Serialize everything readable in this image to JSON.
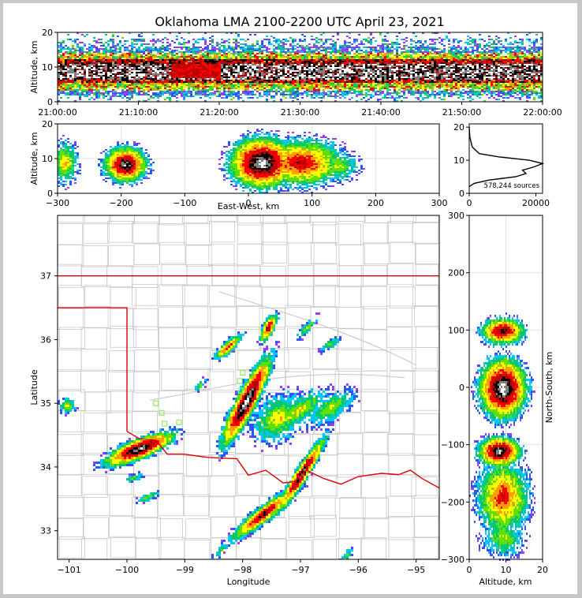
{
  "chart_data": [
    {
      "type": "heatmap",
      "panel": "altitude-time",
      "title": "Oklahoma LMA 2100-2200 UTC April 23, 2021",
      "xlabel": "",
      "ylabel": "Altitude, km",
      "x_ticks": [
        "21:00:00",
        "21:10:00",
        "21:20:00",
        "21:30:00",
        "21:40:00",
        "21:50:00",
        "22:00:00"
      ],
      "y_ticks": [
        "0",
        "10",
        "20"
      ],
      "xlim": [
        "21:00:00",
        "22:00:00"
      ],
      "ylim": [
        0,
        20
      ],
      "core_altitude_km": 9,
      "band": [
        {
          "t": 0,
          "lo": 2.5,
          "hi": 18
        },
        {
          "t": 15,
          "lo": 2.5,
          "hi": 19
        },
        {
          "t": 30,
          "lo": 2,
          "hi": 19
        },
        {
          "t": 45,
          "lo": 2,
          "hi": 19
        },
        {
          "t": 60,
          "lo": 2,
          "hi": 19
        }
      ]
    },
    {
      "type": "heatmap",
      "panel": "altitude-eastwest",
      "xlabel": "East-West, km",
      "ylabel": "Altitude, km",
      "x_ticks": [
        "−300",
        "−200",
        "−100",
        "0",
        "100",
        "200",
        "300"
      ],
      "y_ticks": [
        "0",
        "10",
        "20"
      ],
      "xlim": [
        -300,
        300
      ],
      "ylim": [
        0,
        20
      ],
      "grid": true,
      "blobs": [
        {
          "x": -290,
          "z": 9,
          "rx": 18,
          "rz": 5.5,
          "peak": 0.55
        },
        {
          "x": -195,
          "z": 8.5,
          "rx": 30,
          "rz": 4.5,
          "peak": 0.92
        },
        {
          "x": 20,
          "z": 9,
          "rx": 45,
          "rz": 6.5,
          "peak": 1.0
        },
        {
          "x": 80,
          "z": 9,
          "rx": 60,
          "rz": 6,
          "peak": 0.75
        },
        {
          "x": 140,
          "z": 8,
          "rx": 30,
          "rz": 4,
          "peak": 0.45
        }
      ]
    },
    {
      "type": "line",
      "panel": "altitude-histogram",
      "annotation": "578,244 sources",
      "x_ticks": [
        "0",
        "20000"
      ],
      "y_ticks": [
        "0",
        "10",
        "20"
      ],
      "xlim": [
        0,
        22000
      ],
      "ylim": [
        0,
        21
      ],
      "series": [
        {
          "x": [
            0,
            1500,
            6000,
            14000,
            17000,
            16000,
            19500,
            22000,
            18000,
            9000,
            3000,
            900,
            200,
            0
          ],
          "y": [
            2,
            3,
            4,
            5,
            6,
            7,
            8,
            9,
            10,
            11,
            12,
            14,
            17,
            20
          ]
        }
      ]
    },
    {
      "type": "heatmap",
      "panel": "plan-view",
      "xlabel": "Longitude",
      "ylabel": "Latitude",
      "x_ticks": [
        "−101",
        "−100",
        "−99",
        "−98",
        "−97",
        "−96",
        "−95"
      ],
      "y_ticks": [
        "33",
        "34",
        "35",
        "36",
        "37"
      ],
      "xlim": [
        -101.2,
        -94.6
      ],
      "ylim": [
        32.55,
        37.95
      ],
      "station_color": "#90ee60",
      "boundary_color": "#dd0000",
      "stations": [
        {
          "lon": -99.5,
          "lat": 35.0
        },
        {
          "lon": -99.4,
          "lat": 34.85
        },
        {
          "lon": -99.35,
          "lat": 34.68
        },
        {
          "lon": -99.1,
          "lat": 34.7
        },
        {
          "lon": -98.0,
          "lat": 35.48
        },
        {
          "lon": -98.05,
          "lat": 35.35
        },
        {
          "lon": -98.03,
          "lat": 35.2
        }
      ],
      "cells": [
        {
          "lon": -97.95,
          "lat": 35.05,
          "len": 0.8,
          "wid": 0.17,
          "ang": 60,
          "peak": 1.0
        },
        {
          "lon": -97.4,
          "lat": 34.78,
          "len": 0.5,
          "wid": 0.35,
          "ang": 30,
          "peak": 0.5
        },
        {
          "lon": -97.05,
          "lat": 34.9,
          "len": 0.6,
          "wid": 0.2,
          "ang": 30,
          "peak": 0.5
        },
        {
          "lon": -96.5,
          "lat": 34.95,
          "len": 0.5,
          "wid": 0.2,
          "ang": 30,
          "peak": 0.45
        },
        {
          "lon": -99.8,
          "lat": 34.3,
          "len": 0.65,
          "wid": 0.16,
          "ang": 20,
          "peak": 0.95
        },
        {
          "lon": -97.0,
          "lat": 33.9,
          "len": 0.7,
          "wid": 0.11,
          "ang": 55,
          "peak": 0.9
        },
        {
          "lon": -97.65,
          "lat": 33.28,
          "len": 0.7,
          "wid": 0.13,
          "ang": 35,
          "peak": 0.8
        },
        {
          "lon": -97.57,
          "lat": 36.2,
          "len": 0.25,
          "wid": 0.1,
          "ang": 60,
          "peak": 0.8
        },
        {
          "lon": -98.27,
          "lat": 35.9,
          "len": 0.3,
          "wid": 0.09,
          "ang": 40,
          "peak": 0.7
        },
        {
          "lon": -96.9,
          "lat": 36.2,
          "len": 0.25,
          "wid": 0.07,
          "ang": 45,
          "peak": 0.45
        },
        {
          "lon": -96.5,
          "lat": 35.95,
          "len": 0.2,
          "wid": 0.08,
          "ang": 30,
          "peak": 0.4
        },
        {
          "lon": -98.75,
          "lat": 35.3,
          "len": 0.15,
          "wid": 0.07,
          "ang": 45,
          "peak": 0.4
        },
        {
          "lon": -101.05,
          "lat": 34.98,
          "len": 0.15,
          "wid": 0.12,
          "ang": 0,
          "peak": 0.5
        },
        {
          "lon": -99.9,
          "lat": 33.85,
          "len": 0.2,
          "wid": 0.06,
          "ang": 20,
          "peak": 0.4
        },
        {
          "lon": -99.65,
          "lat": 33.55,
          "len": 0.22,
          "wid": 0.06,
          "ang": 20,
          "peak": 0.45
        },
        {
          "lon": -98.4,
          "lat": 32.7,
          "len": 0.18,
          "wid": 0.06,
          "ang": 45,
          "peak": 0.4
        },
        {
          "lon": -96.2,
          "lat": 32.65,
          "len": 0.15,
          "wid": 0.06,
          "ang": 45,
          "peak": 0.4
        }
      ]
    },
    {
      "type": "heatmap",
      "panel": "northsouth-altitude",
      "xlabel": "Altitude, km",
      "ylabel": "North-South, km",
      "x_ticks": [
        "0",
        "10",
        "20"
      ],
      "y_ticks": [
        "−300",
        "−200",
        "−100",
        "0",
        "100",
        "200",
        "300"
      ],
      "xlim": [
        0,
        20
      ],
      "ylim": [
        -300,
        300
      ],
      "grid": true,
      "blobs": [
        {
          "z": 9,
          "y": 100,
          "rz": 5,
          "ry": 20,
          "peak": 0.85
        },
        {
          "z": 9,
          "y": 0,
          "rz": 5.5,
          "ry": 45,
          "peak": 1.0
        },
        {
          "z": 8,
          "y": -110,
          "rz": 5,
          "ry": 22,
          "peak": 0.95
        },
        {
          "z": 9,
          "y": -190,
          "rz": 6,
          "ry": 55,
          "peak": 0.7
        },
        {
          "z": 9,
          "y": -260,
          "rz": 5,
          "ry": 30,
          "peak": 0.45
        }
      ]
    }
  ]
}
